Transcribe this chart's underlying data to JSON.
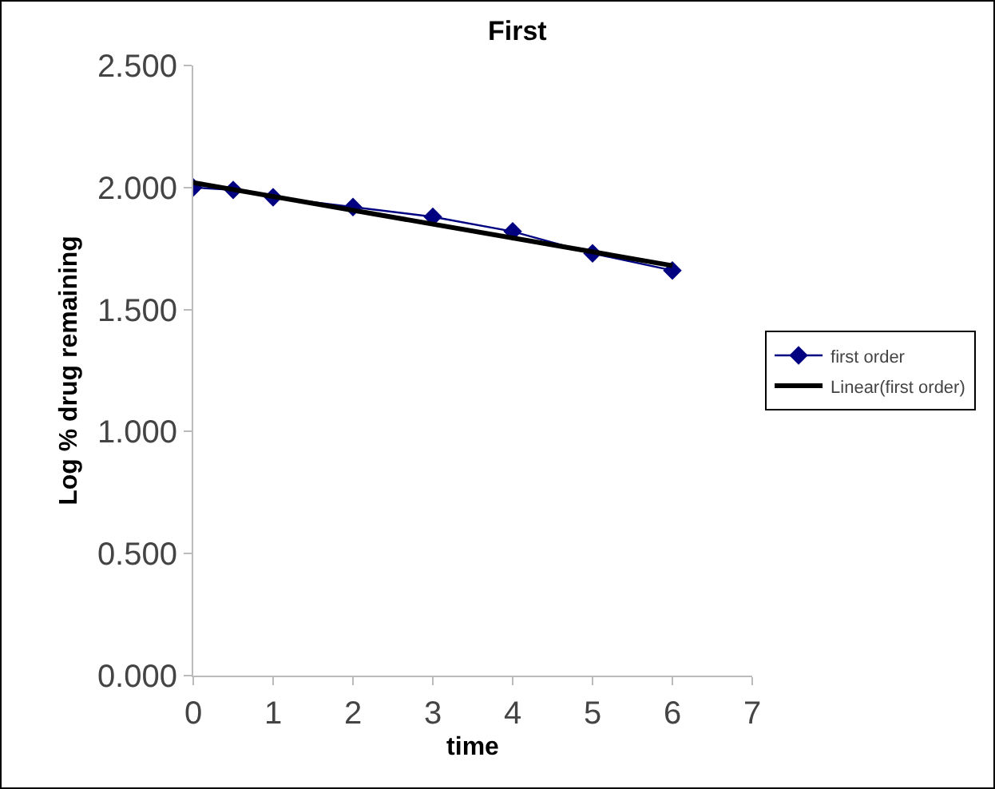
{
  "chart_data": {
    "type": "line",
    "title": "First",
    "xlabel": "time",
    "ylabel": "Log % drug remaining",
    "xlim": [
      0,
      7
    ],
    "xticks": [
      0,
      1,
      2,
      3,
      4,
      5,
      6,
      7
    ],
    "ylim": [
      0,
      2.5
    ],
    "yticks": [
      {
        "value": 0,
        "label": "0.000"
      },
      {
        "value": 0.5,
        "label": "0.500"
      },
      {
        "value": 1,
        "label": "1.000"
      },
      {
        "value": 1.5,
        "label": "1.500"
      },
      {
        "value": 2,
        "label": "2.000"
      },
      {
        "value": 2.5,
        "label": "2.500"
      }
    ],
    "grid": false,
    "legend": "right",
    "marker": "diamond",
    "line_style": "solid",
    "series": [
      {
        "name": "first order",
        "color": "#000080",
        "x": [
          0,
          0.5,
          1,
          2,
          3,
          4,
          5,
          6
        ],
        "values": [
          2.0,
          1.99,
          1.96,
          1.92,
          1.88,
          1.82,
          1.73,
          1.66
        ]
      },
      {
        "name": "Linear(first order)",
        "type": "line",
        "marker": "none",
        "color": "#000000",
        "x": [
          0,
          6
        ],
        "values": [
          2.02,
          1.68
        ]
      }
    ]
  }
}
